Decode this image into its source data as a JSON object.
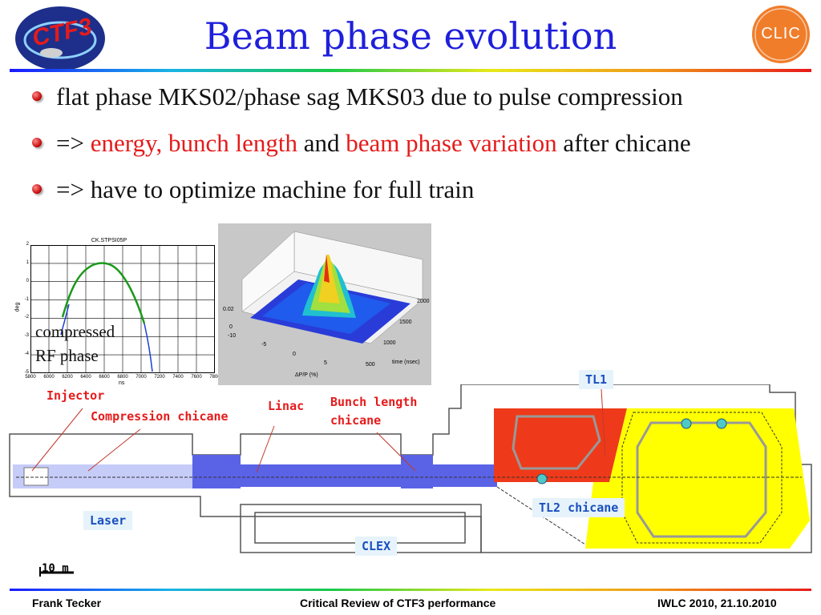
{
  "title": "Beam phase evolution",
  "bullets": {
    "b1": "flat phase MKS02/phase sag MKS03 due to pulse compression",
    "b2_prefix": "=> ",
    "b2_red1": "energy, bunch length",
    "b2_mid": " and ",
    "b2_red2": "beam phase variation",
    "b2_suffix": " after chicane",
    "b3": "=> have to optimize machine for full train"
  },
  "logos": {
    "ctf3": "CTF3",
    "clic": "CLIC"
  },
  "phase_chart": {
    "title": "CK.STPSI05P",
    "ylabel": "deg",
    "xlabel": "ns",
    "yticks": [
      "2",
      "1",
      "0",
      "-1",
      "-2",
      "-3",
      "-4",
      "-5"
    ],
    "xticks": [
      "5800",
      "6000",
      "6200",
      "6400",
      "6600",
      "6800",
      "7000",
      "7200",
      "7400",
      "7600",
      "7800"
    ],
    "annotation_line1": "compressed",
    "annotation_line2": "RF phase"
  },
  "surface_plot": {
    "xlabel": "ΔP/P (%)",
    "ylabel": "time (nsec)",
    "z_ticks": [
      "0.02",
      "0"
    ],
    "x_ticks": [
      "-10",
      "-5",
      "0",
      "5"
    ],
    "y_ticks": [
      "500",
      "1000",
      "1500",
      "2000"
    ]
  },
  "layout_labels": {
    "injector": "Injector",
    "compression_chicane": "Compression chicane",
    "linac": "Linac",
    "bunch_length_chicane_1": "Bunch length",
    "bunch_length_chicane_2": "chicane",
    "tl1": "TL1",
    "tl2_chicane": "TL2 chicane",
    "laser": "Laser",
    "clex": "CLEX",
    "scale": "10 m"
  },
  "footer": {
    "left": "Frank Tecker",
    "center": "Critical Review of CTF3 performance",
    "right": "IWLC 2010, 21.10.2010"
  },
  "colors": {
    "title": "#1f1fdc",
    "red_text": "#e51b1b",
    "linac_blue": "#5a63e6",
    "combiner_red": "#ee3a1a",
    "ring_yellow": "#ffff00"
  }
}
